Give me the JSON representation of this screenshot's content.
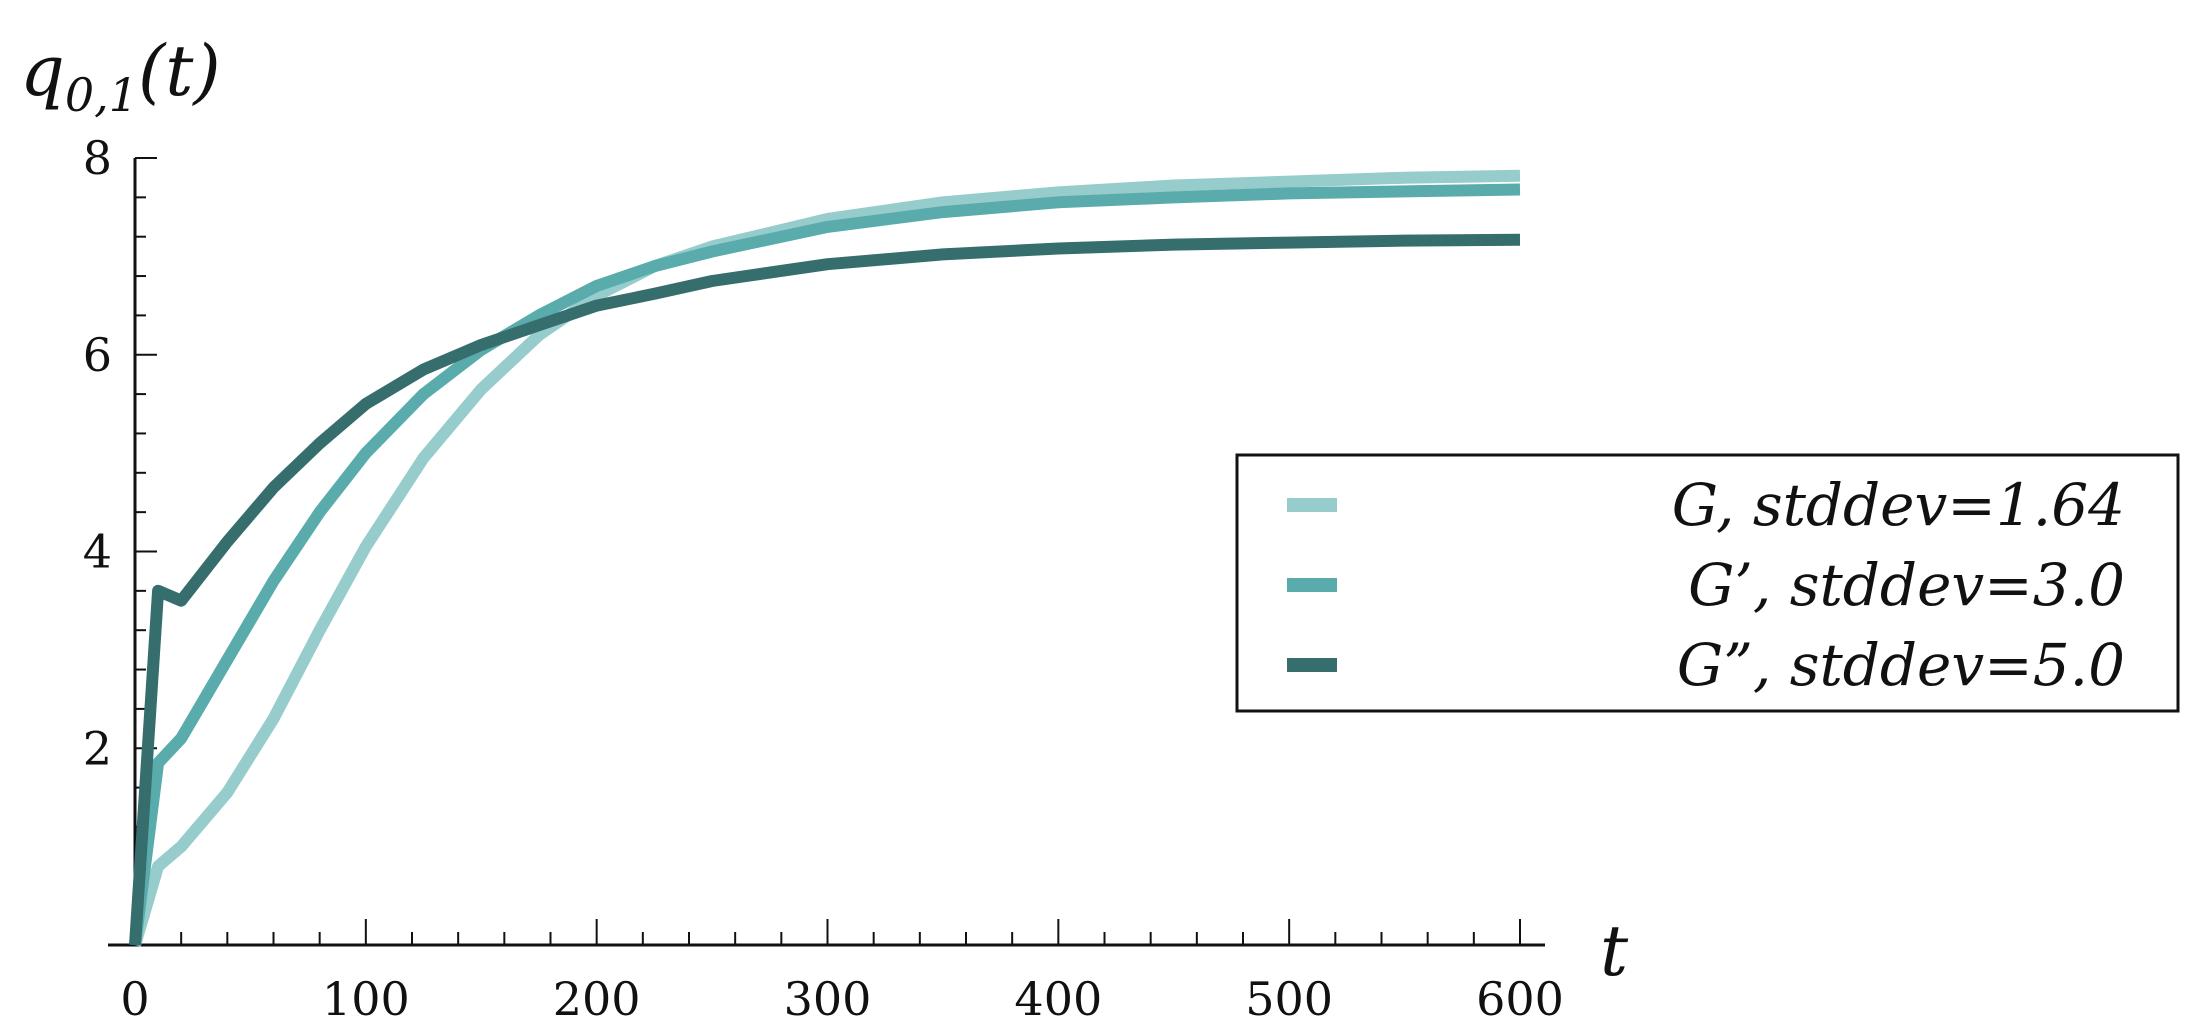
{
  "chart_data": {
    "type": "line",
    "ylabel": "q",
    "ylabel_sub": "0,1",
    "ylabel_suffix": "(t)",
    "xlabel": "t",
    "xlim": [
      0,
      600
    ],
    "ylim": [
      0,
      8
    ],
    "xticks": [
      0,
      100,
      200,
      300,
      400,
      500,
      600
    ],
    "yticks": [
      2,
      4,
      6,
      8
    ],
    "grid": false,
    "legend_position": "right",
    "series": [
      {
        "name": "G, stddev=1.64",
        "color": "#96cccc",
        "x": [
          0,
          10,
          20,
          40,
          60,
          80,
          100,
          125,
          150,
          175,
          200,
          225,
          250,
          300,
          350,
          400,
          450,
          500,
          550,
          600
        ],
        "y": [
          0,
          0.8,
          1.0,
          1.55,
          2.3,
          3.2,
          4.05,
          4.95,
          5.65,
          6.2,
          6.6,
          6.9,
          7.1,
          7.38,
          7.55,
          7.65,
          7.72,
          7.76,
          7.8,
          7.82
        ]
      },
      {
        "name": "G’, stddev=3.0",
        "color": "#5aacac",
        "x": [
          0,
          10,
          20,
          40,
          60,
          80,
          100,
          125,
          150,
          175,
          200,
          225,
          250,
          300,
          350,
          400,
          450,
          500,
          550,
          600
        ],
        "y": [
          0,
          1.85,
          2.1,
          2.9,
          3.7,
          4.4,
          5.0,
          5.6,
          6.05,
          6.4,
          6.7,
          6.9,
          7.05,
          7.3,
          7.45,
          7.55,
          7.6,
          7.64,
          7.66,
          7.68
        ]
      },
      {
        "name": "G”, stddev=5.0",
        "color": "#366e6e",
        "x": [
          0,
          10,
          20,
          40,
          60,
          80,
          100,
          125,
          150,
          175,
          200,
          225,
          250,
          300,
          350,
          400,
          450,
          500,
          550,
          600
        ],
        "y": [
          0,
          3.6,
          3.5,
          4.1,
          4.65,
          5.1,
          5.5,
          5.85,
          6.1,
          6.3,
          6.5,
          6.62,
          6.75,
          6.92,
          7.02,
          7.08,
          7.12,
          7.14,
          7.16,
          7.17
        ]
      }
    ]
  }
}
